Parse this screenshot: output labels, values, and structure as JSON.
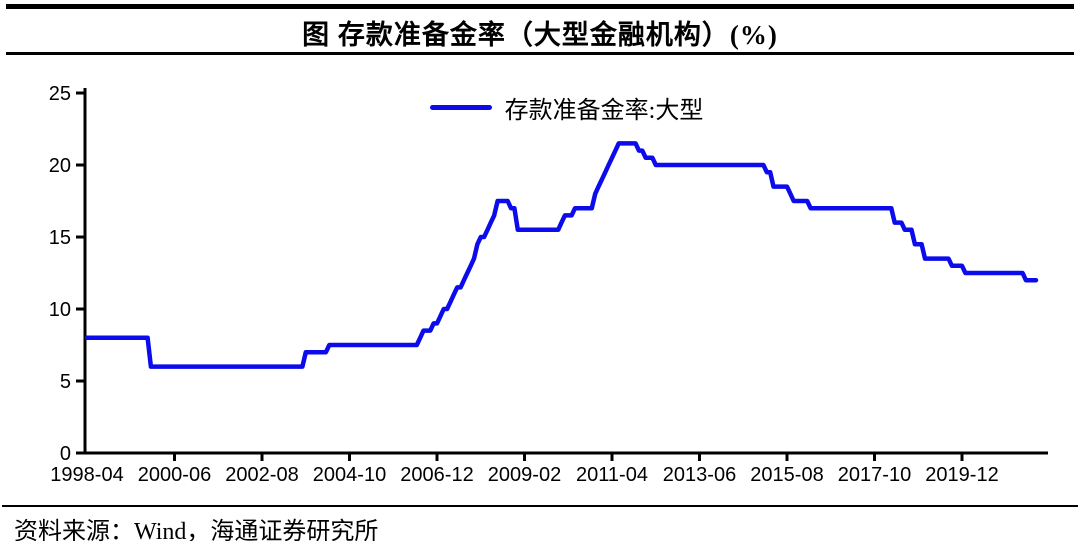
{
  "title": "图  存款准备金率（大型金融机构）(%)",
  "legend": {
    "label": "存款准备金率:大型"
  },
  "source": "资料来源：Wind，海通证券研究所",
  "colors": {
    "line": "#0b0beb",
    "axis": "#000000",
    "text": "#000000",
    "background": "#ffffff"
  },
  "chart_data": {
    "type": "line",
    "title": "图 存款准备金率（大型金融机构）(%)",
    "series_name": "存款准备金率:大型",
    "unit": "%",
    "grid": false,
    "legend_position": "top-center",
    "x_start": "1998-04",
    "x_end": "2021-10",
    "x_tick_interval_months": 26,
    "x_tick_labels": [
      "1998-04",
      "2000-06",
      "2002-08",
      "2004-10",
      "2006-12",
      "2009-02",
      "2011-04",
      "2013-06",
      "2015-08",
      "2017-10",
      "2019-12"
    ],
    "y_ticks": [
      0,
      5,
      10,
      15,
      20,
      25
    ],
    "ylim": [
      0,
      25
    ],
    "step_changes": [
      [
        "1998-04",
        8.0
      ],
      [
        "1999-11",
        6.0
      ],
      [
        "2003-09",
        7.0
      ],
      [
        "2004-04",
        7.5
      ],
      [
        "2006-07",
        8.0
      ],
      [
        "2006-08",
        8.5
      ],
      [
        "2006-11",
        9.0
      ],
      [
        "2007-01",
        9.5
      ],
      [
        "2007-02",
        10.0
      ],
      [
        "2007-04",
        10.5
      ],
      [
        "2007-05",
        11.0
      ],
      [
        "2007-06",
        11.5
      ],
      [
        "2007-08",
        12.0
      ],
      [
        "2007-09",
        12.5
      ],
      [
        "2007-10",
        13.0
      ],
      [
        "2007-11",
        13.5
      ],
      [
        "2007-12",
        14.5
      ],
      [
        "2008-01",
        15.0
      ],
      [
        "2008-03",
        15.5
      ],
      [
        "2008-04",
        16.0
      ],
      [
        "2008-05",
        16.5
      ],
      [
        "2008-06",
        17.5
      ],
      [
        "2008-10",
        17.0
      ],
      [
        "2008-12",
        15.5
      ],
      [
        "2010-01",
        16.0
      ],
      [
        "2010-02",
        16.5
      ],
      [
        "2010-05",
        17.0
      ],
      [
        "2010-11",
        18.0
      ],
      [
        "2010-12",
        18.5
      ],
      [
        "2011-01",
        19.0
      ],
      [
        "2011-02",
        19.5
      ],
      [
        "2011-03",
        20.0
      ],
      [
        "2011-04",
        20.5
      ],
      [
        "2011-05",
        21.0
      ],
      [
        "2011-06",
        21.5
      ],
      [
        "2011-12",
        21.0
      ],
      [
        "2012-02",
        20.5
      ],
      [
        "2012-05",
        20.0
      ],
      [
        "2015-02",
        19.5
      ],
      [
        "2015-04",
        18.5
      ],
      [
        "2015-09",
        18.0
      ],
      [
        "2015-10",
        17.5
      ],
      [
        "2016-03",
        17.0
      ],
      [
        "2018-04",
        16.0
      ],
      [
        "2018-07",
        15.5
      ],
      [
        "2018-10",
        14.5
      ],
      [
        "2019-01",
        13.5
      ],
      [
        "2019-09",
        13.0
      ],
      [
        "2020-01",
        12.5
      ],
      [
        "2021-07",
        12.0
      ]
    ]
  }
}
